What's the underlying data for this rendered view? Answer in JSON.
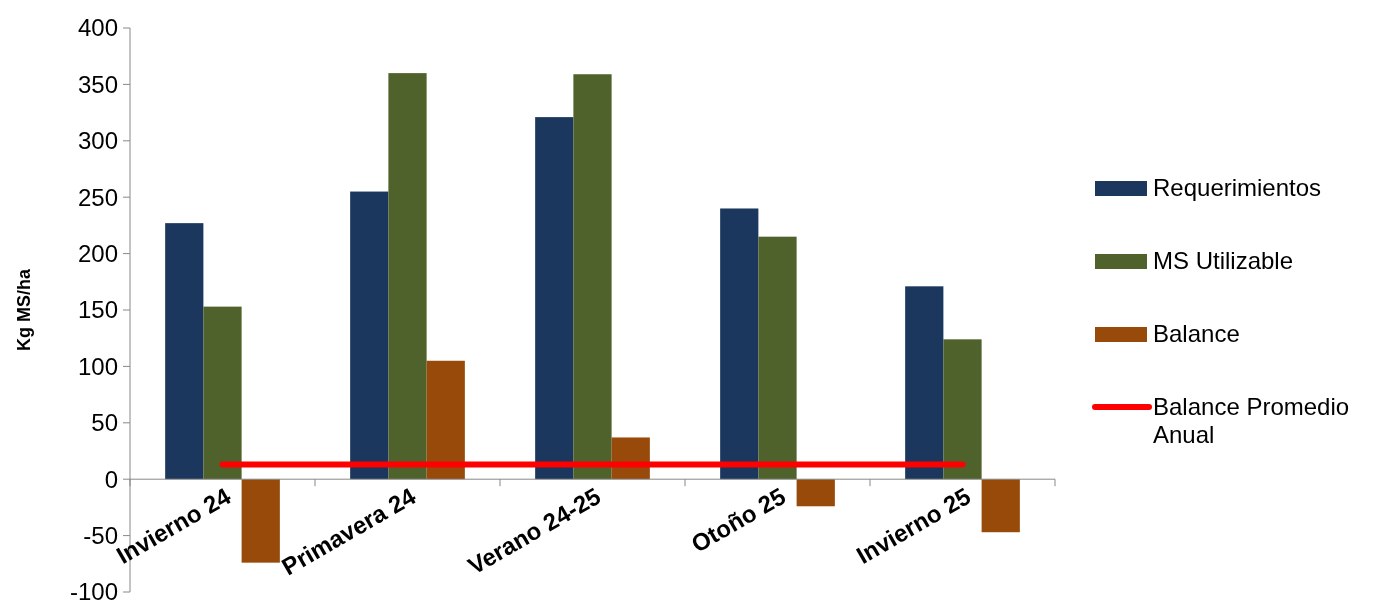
{
  "chart_data": {
    "type": "bar",
    "ylabel": "Kg MS/ha",
    "categories": [
      "Invierno 24",
      "Primavera 24",
      "Verano 24-25",
      "Otoño 25",
      "Invierno 25"
    ],
    "series": [
      {
        "name": "Requerimientos",
        "color": "#1b375e",
        "values": [
          227,
          255,
          321,
          240,
          171
        ]
      },
      {
        "name": "MS Utilizable",
        "color": "#4f622b",
        "values": [
          153,
          360,
          359,
          215,
          124
        ]
      },
      {
        "name": "Balance",
        "color": "#974a0a",
        "values": [
          -74,
          105,
          37,
          -24,
          -47
        ]
      },
      {
        "name": "Balance Promedio Anual",
        "type": "line",
        "color": "#ff0000",
        "values": [
          13,
          13,
          13,
          13,
          13
        ]
      }
    ],
    "ylim": [
      -100,
      400
    ],
    "yticks": [
      -100,
      -50,
      0,
      50,
      100,
      150,
      200,
      250,
      300,
      350,
      400
    ],
    "grid": false,
    "legend": "right"
  }
}
